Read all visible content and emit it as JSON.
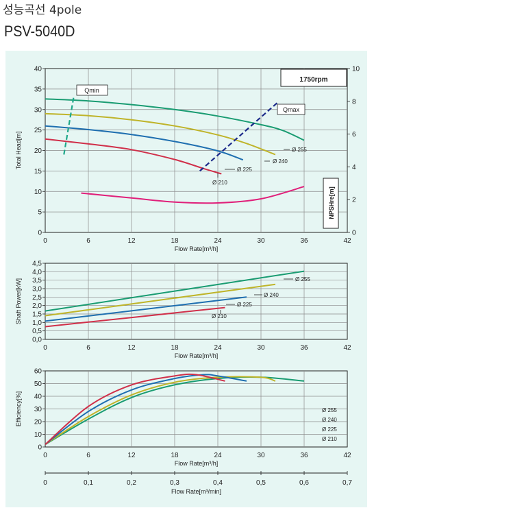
{
  "header": {
    "title": "성능곡선 4pole",
    "model": "PSV-5040D"
  },
  "colors": {
    "panel": "#e6f6f3",
    "d255": "#1a9c72",
    "d240": "#bfb42a",
    "d225": "#1f6fb0",
    "d210": "#d0304a",
    "npsh": "#e0207a",
    "qmin": "#1fa88a",
    "qmax": "#1c2a8a",
    "rpm": "#12976f"
  },
  "chart_data": [
    {
      "type": "line",
      "speed_label": "1750rpm",
      "xlabel": "Flow Rate[m³/h]",
      "ylabel": "Total Head[m]",
      "y2label": "NPSHre[m]",
      "xlim": [
        0,
        42
      ],
      "ylim": [
        0,
        40
      ],
      "y2lim": [
        0,
        10
      ],
      "xticks": [
        "0",
        "6",
        "12",
        "18",
        "24",
        "30",
        "36",
        "42"
      ],
      "yticks": [
        "0",
        "5",
        "10",
        "15",
        "20",
        "25",
        "30",
        "35",
        "40"
      ],
      "y2ticks": [
        "0",
        "2",
        "4",
        "6",
        "8",
        "10"
      ],
      "series": [
        {
          "name": "Ø 255",
          "x": [
            0,
            6,
            12,
            18,
            24,
            30,
            33,
            36
          ],
          "y": [
            32.6,
            32.1,
            31.2,
            30.0,
            28.4,
            26.3,
            24.9,
            22.5
          ]
        },
        {
          "name": "Ø 240",
          "x": [
            0,
            6,
            12,
            18,
            24,
            28,
            32
          ],
          "y": [
            29.0,
            28.5,
            27.5,
            26.0,
            23.8,
            21.7,
            19.0
          ]
        },
        {
          "name": "Ø 225",
          "x": [
            0,
            6,
            12,
            18,
            24,
            27.5
          ],
          "y": [
            26.0,
            25.1,
            23.9,
            22.2,
            19.9,
            17.7
          ]
        },
        {
          "name": "Ø 210",
          "x": [
            0,
            6,
            12,
            18,
            22,
            24.5
          ],
          "y": [
            22.8,
            21.6,
            20.2,
            17.8,
            15.6,
            14.3
          ]
        },
        {
          "name": "NPSHre",
          "axis": "y2",
          "x": [
            5,
            12,
            18,
            24,
            30,
            36
          ],
          "y": [
            2.4,
            2.1,
            1.85,
            1.8,
            2.05,
            2.8
          ]
        }
      ],
      "annotations": [
        {
          "text": "Qmin",
          "x": [
            2.6,
            4.0
          ],
          "y": [
            19,
            33.5
          ]
        },
        {
          "text": "Qmax",
          "x": [
            21.5,
            32.5
          ],
          "y": [
            15,
            32
          ]
        }
      ]
    },
    {
      "type": "line",
      "xlabel": "Flow Rate[m³/h]",
      "ylabel": "Shaft Power[kW]",
      "xlim": [
        0,
        42
      ],
      "ylim": [
        0,
        4.5
      ],
      "xticks": [
        "0",
        "6",
        "12",
        "18",
        "24",
        "30",
        "36",
        "42"
      ],
      "yticks": [
        "0,0",
        "0,5",
        "1,0",
        "1,5",
        "2,0",
        "2,5",
        "3,0",
        "3,5",
        "4,0",
        "4,5"
      ],
      "series": [
        {
          "name": "Ø 255",
          "x": [
            0,
            36
          ],
          "y": [
            1.68,
            4.03
          ]
        },
        {
          "name": "Ø 240",
          "x": [
            0,
            32
          ],
          "y": [
            1.4,
            3.25
          ]
        },
        {
          "name": "Ø 225",
          "x": [
            0,
            28
          ],
          "y": [
            1.08,
            2.5
          ]
        },
        {
          "name": "Ø 210",
          "x": [
            0,
            25
          ],
          "y": [
            0.75,
            1.88
          ]
        }
      ]
    },
    {
      "type": "line",
      "xlabel": "Flow Rate[m³/h]",
      "ylabel": "Efficiency[%]",
      "x2label": "Flow Rate[m³/min]",
      "xlim": [
        0,
        42
      ],
      "ylim": [
        0,
        60
      ],
      "xticks": [
        "0",
        "6",
        "12",
        "18",
        "24",
        "30",
        "36",
        "42"
      ],
      "yticks": [
        "0",
        "10",
        "20",
        "30",
        "40",
        "50",
        "60"
      ],
      "x2ticks": [
        "0",
        "0,1",
        "0,2",
        "0,3",
        "0,4",
        "0,5",
        "0,6",
        "0,7"
      ],
      "legend": [
        "Ø 255",
        "Ø 240",
        "Ø 225",
        "Ø 210"
      ],
      "series": [
        {
          "name": "Ø 255",
          "x": [
            0,
            6,
            12,
            18,
            24,
            30,
            36
          ],
          "y": [
            2,
            22,
            39,
            49,
            54,
            55,
            52
          ]
        },
        {
          "name": "Ø 240",
          "x": [
            0,
            6,
            12,
            18,
            24,
            30,
            32
          ],
          "y": [
            2,
            24,
            41,
            51,
            55,
            55,
            52
          ]
        },
        {
          "name": "Ø 225",
          "x": [
            0,
            6,
            12,
            18,
            22,
            24,
            28
          ],
          "y": [
            2,
            28,
            45,
            54,
            57,
            56,
            52
          ]
        },
        {
          "name": "Ø 210",
          "x": [
            0,
            6,
            12,
            18,
            21,
            25
          ],
          "y": [
            2,
            32,
            49,
            56,
            57,
            52
          ]
        }
      ]
    }
  ]
}
